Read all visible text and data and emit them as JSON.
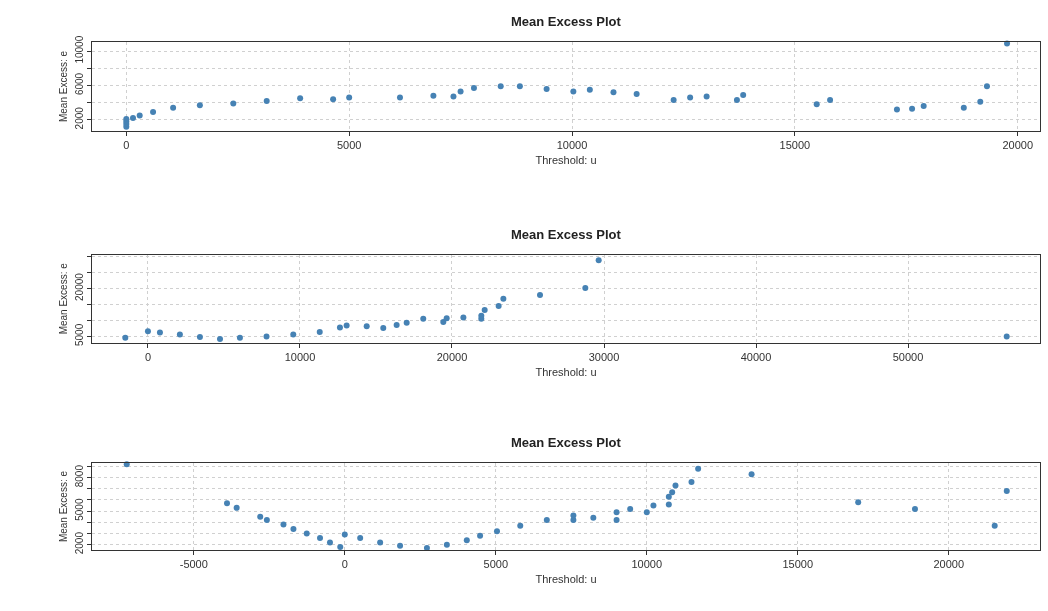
{
  "chart_data": [
    {
      "type": "scatter",
      "title": "Mean Excess Plot",
      "xlabel": "Threshold: u",
      "ylabel": "Mean Excess: e",
      "marker": "circle",
      "grid": true,
      "xlim": [
        -770,
        20500
      ],
      "ylim": [
        720,
        11050
      ],
      "xticks": [
        0,
        5000,
        10000,
        15000,
        20000
      ],
      "yticks": [
        2000,
        {
          "value": 4000,
          "label": null
        },
        6000,
        {
          "value": 8000,
          "label": null
        },
        10000
      ],
      "series": [
        {
          "color": "#4682b4",
          "x": [
            0,
            0,
            0,
            0,
            150,
            300,
            600,
            1050,
            1650,
            2400,
            3150,
            3900,
            4640,
            5000,
            6140,
            6890,
            7340,
            7500,
            7800,
            8400,
            8830,
            9430,
            10030,
            10400,
            10930,
            11450,
            12280,
            12650,
            13020,
            13700,
            13840,
            15490,
            15790,
            17290,
            17630,
            17890,
            18790,
            19160,
            19310,
            19760
          ],
          "values": [
            1200,
            1500,
            1800,
            2100,
            2200,
            2500,
            2900,
            3400,
            3700,
            3900,
            4200,
            4500,
            4400,
            4600,
            4600,
            4800,
            4700,
            5300,
            5700,
            5900,
            5900,
            5600,
            5300,
            5500,
            5200,
            5000,
            4300,
            4600,
            4700,
            4300,
            4900,
            3800,
            4300,
            3200,
            3300,
            3600,
            3400,
            4100,
            5900,
            10900
          ]
        }
      ]
    },
    {
      "type": "scatter",
      "title": "Mean Excess Plot",
      "xlabel": "Threshold: u",
      "ylabel": "Mean Excess: e",
      "marker": "circle",
      "grid": true,
      "xlim": [
        -3680,
        58680
      ],
      "ylim": [
        3000,
        30600
      ],
      "xticks": [
        0,
        10000,
        20000,
        30000,
        40000,
        50000
      ],
      "yticks": [
        5000,
        {
          "value": 10000,
          "label": null
        },
        {
          "value": 15000,
          "label": null
        },
        20000,
        {
          "value": 25000,
          "label": null
        },
        {
          "value": 30000,
          "label": null
        }
      ],
      "series": [
        {
          "color": "#4682b4",
          "x": [
            -1490,
            0,
            790,
            2100,
            3420,
            4740,
            6050,
            7800,
            9560,
            11300,
            12630,
            13070,
            14390,
            15480,
            16360,
            17020,
            18110,
            19430,
            19650,
            20750,
            21930,
            21930,
            22150,
            23070,
            23380,
            25790,
            28770,
            29650,
            56490
          ],
          "values": [
            4600,
            6600,
            6200,
            5600,
            4800,
            4200,
            4600,
            5000,
            5600,
            6400,
            7800,
            8400,
            8200,
            7600,
            8600,
            9300,
            10500,
            9500,
            10700,
            10900,
            10500,
            11500,
            13300,
            14500,
            16800,
            18000,
            20200,
            28900,
            5000
          ]
        }
      ]
    },
    {
      "type": "scatter",
      "title": "Mean Excess Plot",
      "xlabel": "Threshold: u",
      "ylabel": "Mean Excess: e",
      "marker": "circle",
      "grid": true,
      "xlim": [
        -8370,
        23020
      ],
      "ylim": [
        1530,
        9300
      ],
      "xticks": [
        -5000,
        0,
        5000,
        10000,
        15000,
        20000
      ],
      "yticks": [
        2000,
        {
          "value": 3000,
          "label": null
        },
        {
          "value": 4000,
          "label": null
        },
        5000,
        {
          "value": 6000,
          "label": null
        },
        {
          "value": 7000,
          "label": null
        },
        8000,
        {
          "value": 9000,
          "label": null
        }
      ],
      "series": [
        {
          "color": "#4682b4",
          "x": [
            -7220,
            -3900,
            -3580,
            -2800,
            -2580,
            -2030,
            -1700,
            -1260,
            -820,
            -490,
            -150,
            0,
            510,
            1170,
            1830,
            2720,
            3380,
            4040,
            4480,
            5040,
            5810,
            6690,
            7570,
            7570,
            8230,
            9000,
            9000,
            9450,
            10000,
            10220,
            10730,
            10730,
            10840,
            10950,
            11480,
            11700,
            13470,
            17000,
            18880,
            21520,
            21920
          ],
          "values": [
            9200,
            5700,
            5300,
            4500,
            4200,
            3800,
            3400,
            3000,
            2600,
            2200,
            1800,
            2900,
            2600,
            2200,
            1900,
            1700,
            2000,
            2400,
            2800,
            3200,
            3700,
            4200,
            4200,
            4600,
            4400,
            4200,
            4900,
            5200,
            4900,
            5500,
            5600,
            6300,
            6700,
            7300,
            7600,
            8800,
            8300,
            5800,
            5200,
            3700,
            6800
          ]
        }
      ]
    }
  ]
}
